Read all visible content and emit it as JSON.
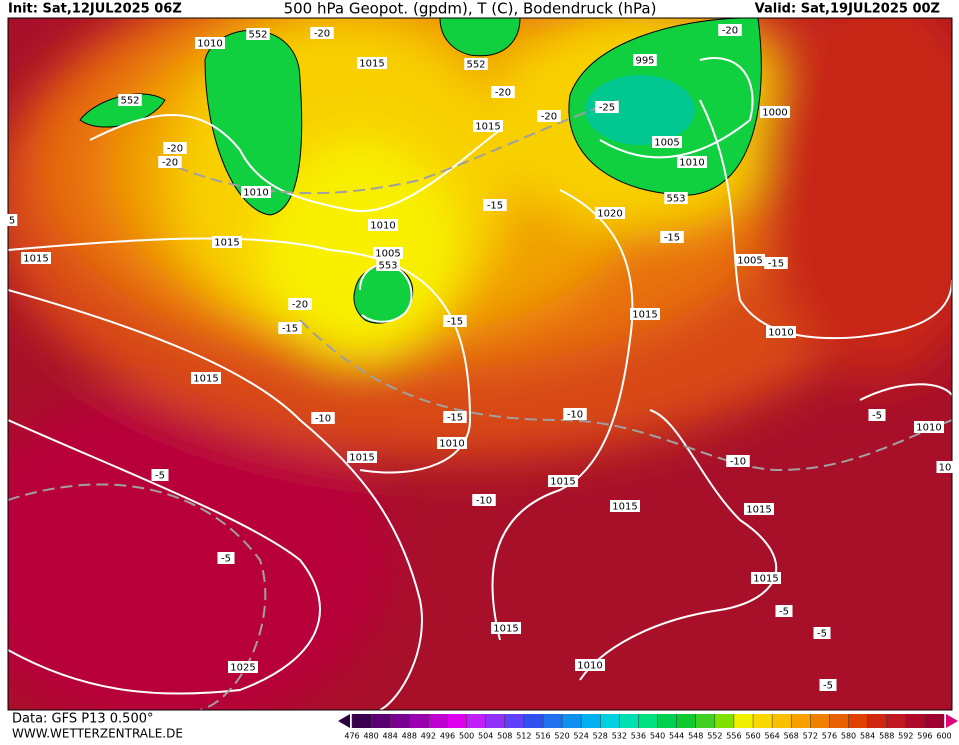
{
  "header": {
    "init": "Init: Sat,12JUL2025 06Z",
    "title": "500 hPa Geopot. (gpdm), T (C), Bodendruck (hPa)",
    "valid": "Valid: Sat,19JUL2025 00Z"
  },
  "footer": {
    "source": "Data: GFS P13 0.500°",
    "website": "WWW.WETTERZENTRALE.DE"
  },
  "colorbar": {
    "ticks": [
      476,
      480,
      484,
      488,
      492,
      496,
      500,
      504,
      508,
      512,
      516,
      520,
      524,
      528,
      532,
      536,
      540,
      544,
      548,
      552,
      556,
      560,
      564,
      568,
      572,
      576,
      580,
      584,
      588,
      592,
      596,
      600
    ],
    "colors": [
      "#3a0050",
      "#5a0070",
      "#7a0090",
      "#9a00b0",
      "#c000d0",
      "#e000f0",
      "#c020f8",
      "#9030f8",
      "#6040f8",
      "#3050f0",
      "#2070f0",
      "#1090f0",
      "#00b0f0",
      "#00d0e0",
      "#00e0b0",
      "#00e080",
      "#00d050",
      "#10c830",
      "#40d020",
      "#80e000",
      "#f0f000",
      "#f8d800",
      "#f8c000",
      "#f8a000",
      "#f08000",
      "#e86000",
      "#e04000",
      "#d02810",
      "#c01820",
      "#b00828",
      "#a00030"
    ]
  },
  "map": {
    "contour_labels": [
      "1010",
      "552",
      "-20",
      "1015",
      "552",
      "-20",
      "995",
      "-20",
      "1000",
      "552",
      "-20",
      "-20",
      "1015",
      "-20",
      "-25",
      "1005",
      "1010",
      "553",
      "1010",
      "-15",
      "1020",
      "1010",
      "-15",
      "1015",
      "1015",
      "1005",
      "553",
      "1005",
      "-15",
      "-20",
      "-15",
      "-15",
      "1015",
      "1010",
      "1015",
      "-10",
      "-15",
      "-10",
      "-5",
      "1010",
      "1010",
      "1015",
      "-10",
      "-5",
      "1015",
      "-10",
      "1015",
      "1015",
      "-5",
      "1015",
      "-5",
      "-5",
      "1015",
      "1010",
      "1025",
      "-5",
      "5",
      "10"
    ]
  }
}
